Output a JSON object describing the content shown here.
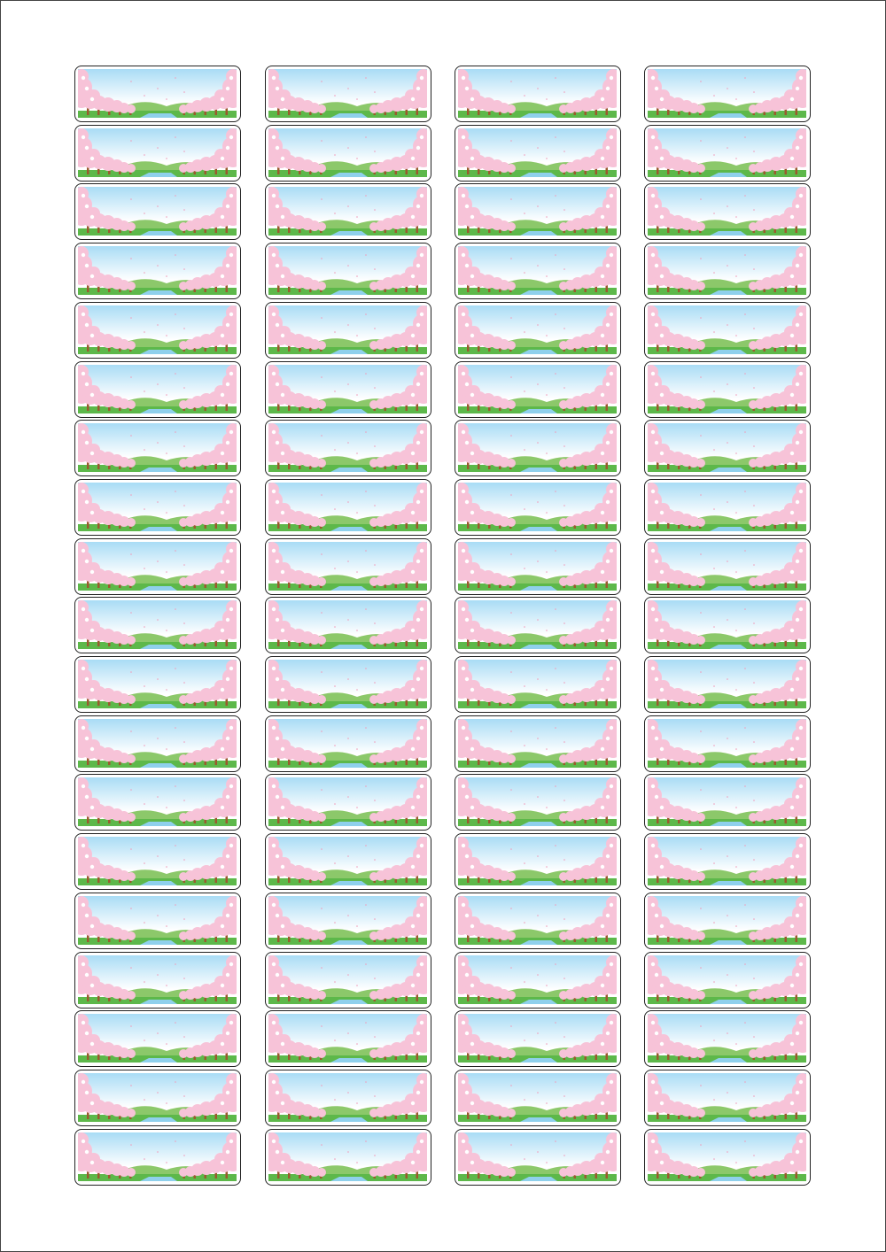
{
  "sheet": {
    "rows": 19,
    "columns": 4,
    "label_design": "cherry-blossom-river-landscape",
    "colors": {
      "border": "#222222",
      "sky_top": "#a9dcf5",
      "sky_bottom": "#ffffff",
      "blossom": "#f7c3d8",
      "blossom_light": "#fde3ee",
      "hill": "#8cc86a",
      "grass": "#5db84a",
      "river": "#8fd0ec",
      "trunk": "#9a5a2e"
    }
  }
}
